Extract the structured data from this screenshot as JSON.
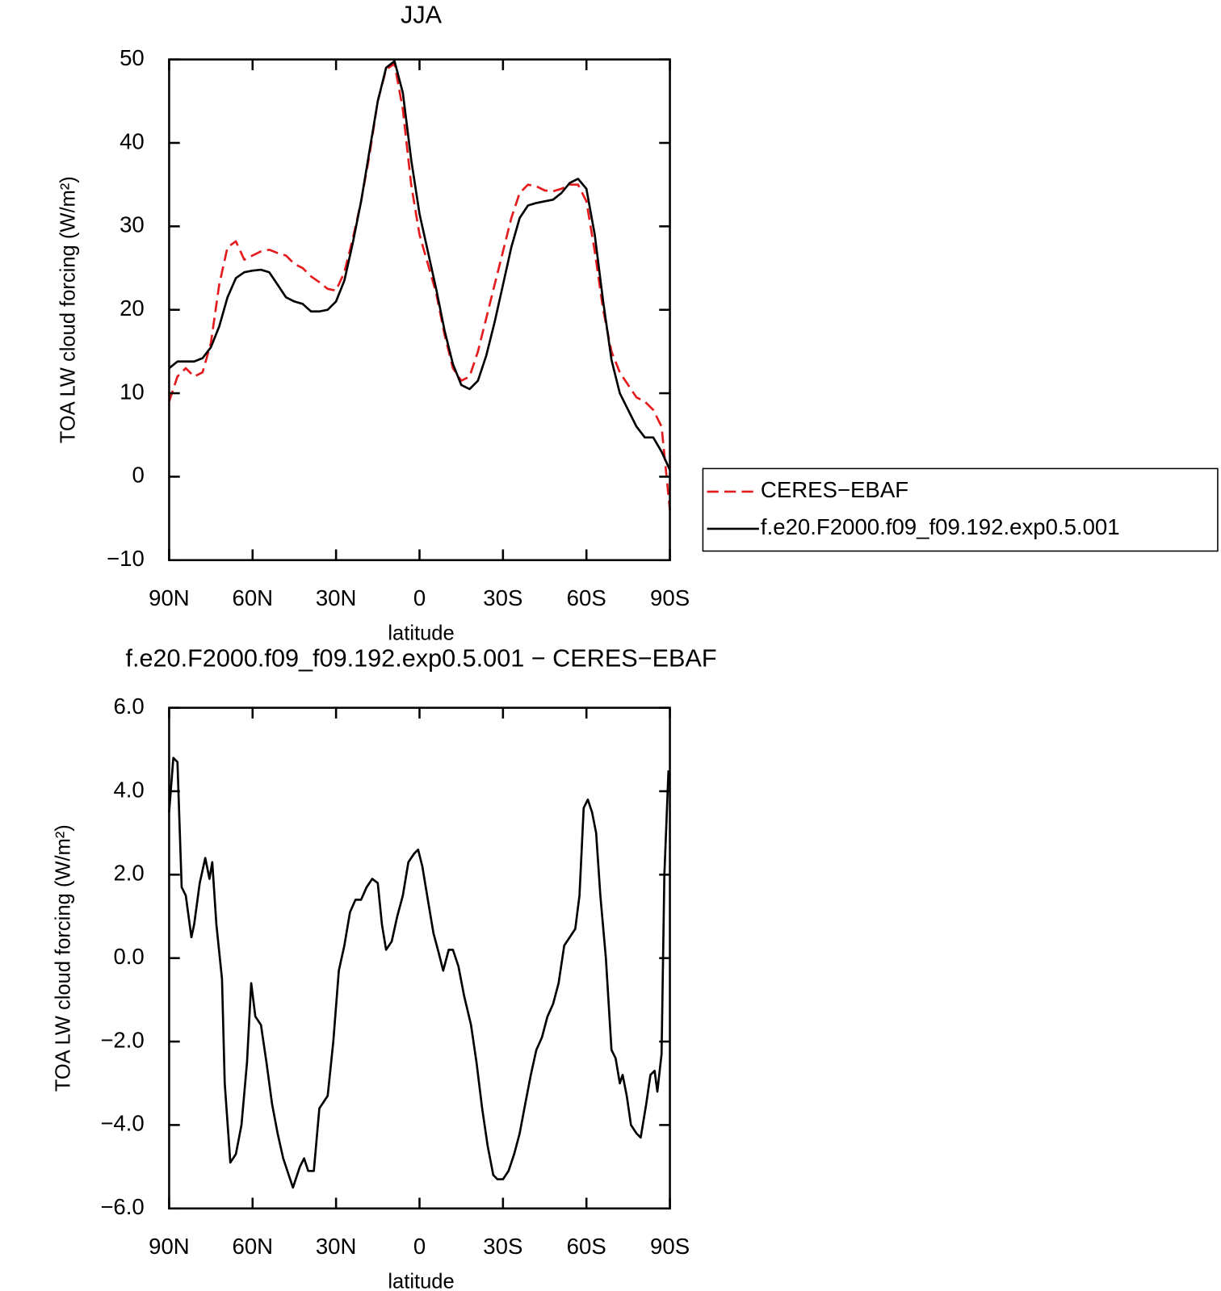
{
  "chart_data": [
    {
      "type": "line",
      "title": "JJA",
      "xlabel": "latitude",
      "ylabel": "TOA LW cloud forcing (W/m²)",
      "xlim": [
        90,
        -90
      ],
      "ylim": [
        -10,
        50
      ],
      "xticks": [
        {
          "value": 90,
          "label": "90N"
        },
        {
          "value": 60,
          "label": "60N"
        },
        {
          "value": 30,
          "label": "30N"
        },
        0,
        {
          "value": -30,
          "label": "30S"
        },
        {
          "value": -60,
          "label": "60S"
        },
        {
          "value": -90,
          "label": "90S"
        }
      ],
      "yticks": [
        {
          "value": -10,
          "label": "−10"
        },
        0,
        10,
        20,
        30,
        40,
        50
      ],
      "legend": "right",
      "x": [
        90,
        87,
        84,
        81,
        78,
        75,
        72,
        69,
        66,
        63,
        60,
        57,
        54,
        51,
        48,
        45,
        42,
        39,
        36,
        33,
        30,
        27,
        24,
        21,
        18,
        15,
        12,
        9,
        6,
        3,
        0,
        -3,
        -6,
        -9,
        -12,
        -15,
        -18,
        -21,
        -24,
        -27,
        -30,
        -33,
        -36,
        -39,
        -42,
        -45,
        -48,
        -51,
        -54,
        -57,
        -60,
        -63,
        -66,
        -69,
        -72,
        -75,
        -78,
        -81,
        -84,
        -87,
        -90
      ],
      "series": [
        {
          "name": "CERES−EBAF",
          "color": "#e41a1c",
          "dash": true,
          "values": [
            9,
            12,
            13,
            12,
            12.5,
            16,
            23,
            27.5,
            28.2,
            26,
            26.5,
            27,
            27.2,
            26.8,
            26.5,
            25.5,
            25,
            24,
            23.3,
            22.5,
            22.3,
            24.5,
            28.5,
            33,
            38.5,
            45,
            48.8,
            49.5,
            44,
            35,
            29,
            25.5,
            22,
            17,
            13,
            11.5,
            12,
            15,
            19,
            23,
            27,
            31,
            34,
            35,
            34.8,
            34.3,
            34.2,
            34.5,
            35,
            35,
            33,
            27,
            20,
            15,
            12.5,
            11,
            9.5,
            9,
            8,
            6,
            -4
          ]
        },
        {
          "name": "f.e20.F2000.f09_f09.192.exp0.5.001",
          "color": "#000000",
          "dash": false,
          "values": [
            13,
            13.8,
            13.8,
            13.8,
            14.2,
            15.5,
            18,
            21.5,
            23.8,
            24.5,
            24.7,
            24.8,
            24.5,
            23,
            21.5,
            21,
            20.7,
            19.8,
            19.8,
            20,
            21,
            23.5,
            28,
            33,
            39,
            45,
            49,
            49.8,
            46,
            38,
            31.5,
            27,
            22.5,
            17.5,
            13.5,
            11,
            10.5,
            11.5,
            14.5,
            18.5,
            23,
            27.5,
            31,
            32.5,
            32.8,
            33,
            33.2,
            34,
            35.2,
            35.7,
            34.5,
            29,
            21,
            14,
            10,
            8,
            6,
            4.7,
            4.7,
            3,
            0.8
          ]
        }
      ]
    },
    {
      "type": "line",
      "title": "f.e20.F2000.f09_f09.192.exp0.5.001 − CERES−EBAF",
      "xlabel": "latitude",
      "ylabel": "TOA LW cloud forcing (W/m²)",
      "xlim": [
        90,
        -90
      ],
      "ylim": [
        -6,
        6
      ],
      "xticks": [
        {
          "value": 90,
          "label": "90N"
        },
        {
          "value": 60,
          "label": "60N"
        },
        {
          "value": 30,
          "label": "30N"
        },
        0,
        {
          "value": -30,
          "label": "30S"
        },
        {
          "value": -60,
          "label": "60S"
        },
        {
          "value": -90,
          "label": "90S"
        }
      ],
      "yticks": [
        {
          "value": -6,
          "label": "−6.0"
        },
        {
          "value": -4,
          "label": "−4.0"
        },
        {
          "value": -2,
          "label": "−2.0"
        },
        {
          "value": 0,
          "label": "0.0"
        },
        {
          "value": 2,
          "label": "2.0"
        },
        {
          "value": 4,
          "label": "4.0"
        },
        {
          "value": 6,
          "label": "6.0"
        }
      ],
      "color": "#000000",
      "x": [
        90,
        88.5,
        87,
        85.5,
        84,
        82,
        81,
        79,
        77,
        75.5,
        74.5,
        73,
        71,
        70,
        68,
        66,
        64,
        62,
        60.5,
        59,
        57,
        55,
        53,
        51,
        49,
        47,
        45.5,
        43,
        41.5,
        40,
        38,
        36,
        33,
        31,
        29,
        27,
        25,
        23,
        21,
        19,
        17,
        15,
        13.5,
        12,
        10,
        8,
        6,
        4,
        2,
        0.5,
        -1,
        -3,
        -5,
        -7,
        -8.5,
        -10.5,
        -12,
        -14,
        -16,
        -18.5,
        -20.5,
        -22.5,
        -24.5,
        -26.5,
        -28,
        -30,
        -32,
        -34,
        -36,
        -38,
        -40,
        -42,
        -44,
        -46,
        -48,
        -50,
        -52,
        -54,
        -56,
        -57.5,
        -59,
        -60.5,
        -62,
        -63.5,
        -65,
        -67,
        -69,
        -70.5,
        -72,
        -73,
        -74.5,
        -76,
        -78,
        -79.5,
        -81.5,
        -83,
        -84.5,
        -85.5,
        -87,
        -88,
        -89.5
      ],
      "values": [
        3.5,
        4.8,
        4.7,
        1.7,
        1.5,
        0.5,
        0.8,
        1.8,
        2.4,
        1.9,
        2.3,
        0.8,
        -0.5,
        -3,
        -4.9,
        -4.7,
        -4,
        -2.5,
        -0.6,
        -1.4,
        -1.6,
        -2.5,
        -3.5,
        -4.2,
        -4.8,
        -5.2,
        -5.5,
        -5,
        -4.8,
        -5.1,
        -5.1,
        -3.6,
        -3.3,
        -2,
        -0.3,
        0.3,
        1.1,
        1.4,
        1.4,
        1.7,
        1.9,
        1.8,
        0.8,
        0.2,
        0.4,
        1,
        1.5,
        2.3,
        2.5,
        2.6,
        2.2,
        1.4,
        0.6,
        0.1,
        -0.3,
        0.2,
        0.2,
        -0.2,
        -0.9,
        -1.6,
        -2.5,
        -3.6,
        -4.5,
        -5.2,
        -5.3,
        -5.3,
        -5.1,
        -4.7,
        -4.2,
        -3.5,
        -2.8,
        -2.2,
        -1.9,
        -1.4,
        -1.1,
        -0.6,
        0.3,
        0.5,
        0.7,
        1.5,
        3.6,
        3.8,
        3.5,
        3,
        1.5,
        0,
        -2.2,
        -2.4,
        -3,
        -2.8,
        -3.3,
        -4,
        -4.2,
        -4.3,
        -3.5,
        -2.8,
        -2.7,
        -3.2,
        -2.3,
        2,
        4.5
      ]
    }
  ]
}
